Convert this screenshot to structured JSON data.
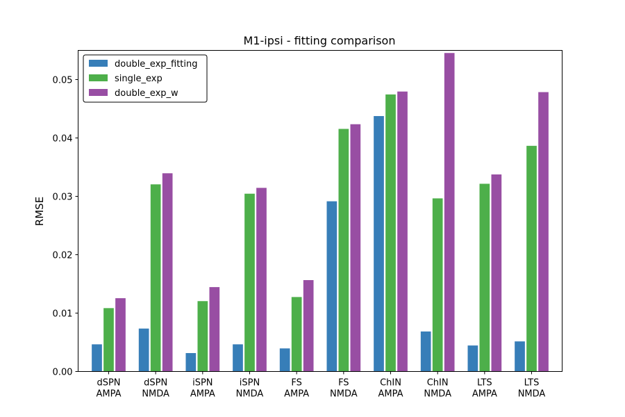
{
  "chart_data": {
    "type": "bar",
    "title": "M1-ipsi  -  fitting comparison",
    "xlabel": "",
    "ylabel": "RMSE",
    "ylim": [
      0,
      0.055
    ],
    "yticks": [
      0.0,
      0.01,
      0.02,
      0.03,
      0.04,
      0.05
    ],
    "ytick_labels": [
      "0.00",
      "0.01",
      "0.02",
      "0.03",
      "0.04",
      "0.05"
    ],
    "categories": [
      [
        "dSPN",
        "AMPA"
      ],
      [
        "dSPN",
        "NMDA"
      ],
      [
        "iSPN",
        "AMPA"
      ],
      [
        "iSPN",
        "NMDA"
      ],
      [
        "FS",
        "AMPA"
      ],
      [
        "FS",
        "NMDA"
      ],
      [
        "ChIN",
        "AMPA"
      ],
      [
        "ChIN",
        "NMDA"
      ],
      [
        "LTS",
        "AMPA"
      ],
      [
        "LTS",
        "NMDA"
      ]
    ],
    "series": [
      {
        "name": "double_exp_fitting",
        "color": "#377eb8",
        "values": [
          0.0047,
          0.0074,
          0.0032,
          0.0047,
          0.004,
          0.0292,
          0.0438,
          0.0069,
          0.0045,
          0.0052
        ]
      },
      {
        "name": "single_exp",
        "color": "#4daf4a",
        "values": [
          0.0109,
          0.0321,
          0.0121,
          0.0305,
          0.0128,
          0.0416,
          0.0475,
          0.0297,
          0.0322,
          0.0387
        ]
      },
      {
        "name": "double_exp_w",
        "color": "#984ea3",
        "values": [
          0.0126,
          0.034,
          0.0145,
          0.0315,
          0.0157,
          0.0424,
          0.048,
          0.0546,
          0.0338,
          0.0479
        ]
      }
    ],
    "grid": false,
    "legend_position": "top-left"
  }
}
